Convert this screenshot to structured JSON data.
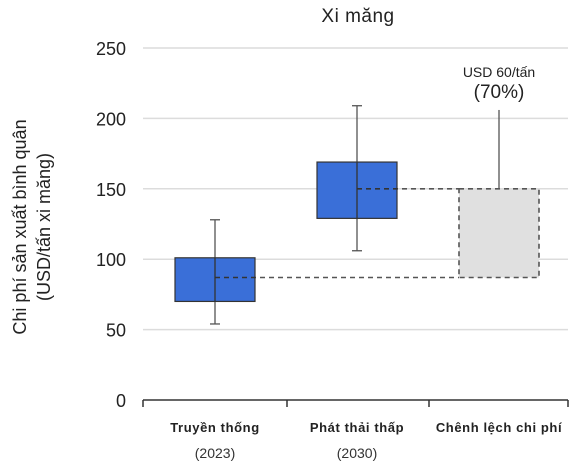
{
  "chart_data": {
    "type": "box",
    "title": "Xi măng",
    "ylabel_line1": "Chi phí sản xuất bình quân",
    "ylabel_line2": "(USD/tấn xi măng)",
    "xlabel": "",
    "ylim": [
      0,
      250
    ],
    "yticks": [
      0,
      50,
      100,
      150,
      200,
      250
    ],
    "grid": true,
    "categories": [
      {
        "label": "Truyền thống",
        "sublabel": "(2023)"
      },
      {
        "label": "Phát thải thấp",
        "sublabel": "(2030)"
      },
      {
        "label": "Chênh lệch chi phí",
        "sublabel": ""
      }
    ],
    "boxes": [
      {
        "category": "Truyền thống",
        "whisker_low": 54,
        "box_low": 70,
        "mean": 87,
        "box_high": 101,
        "whisker_high": 128,
        "color": "#3a6fd8"
      },
      {
        "category": "Phát thải thấp",
        "whisker_low": 106,
        "box_low": 129,
        "mean": 150,
        "box_high": 169,
        "whisker_high": 209,
        "color": "#3a6fd8"
      },
      {
        "category": "Chênh lệch chi phí",
        "whisker_low": null,
        "box_low": 87,
        "mean": null,
        "box_high": 150,
        "whisker_high": 206,
        "color": "#e0e0e0",
        "dashed": true
      }
    ],
    "annotation": {
      "line1": "USD 60/tấn",
      "line2": "(70%)"
    }
  }
}
